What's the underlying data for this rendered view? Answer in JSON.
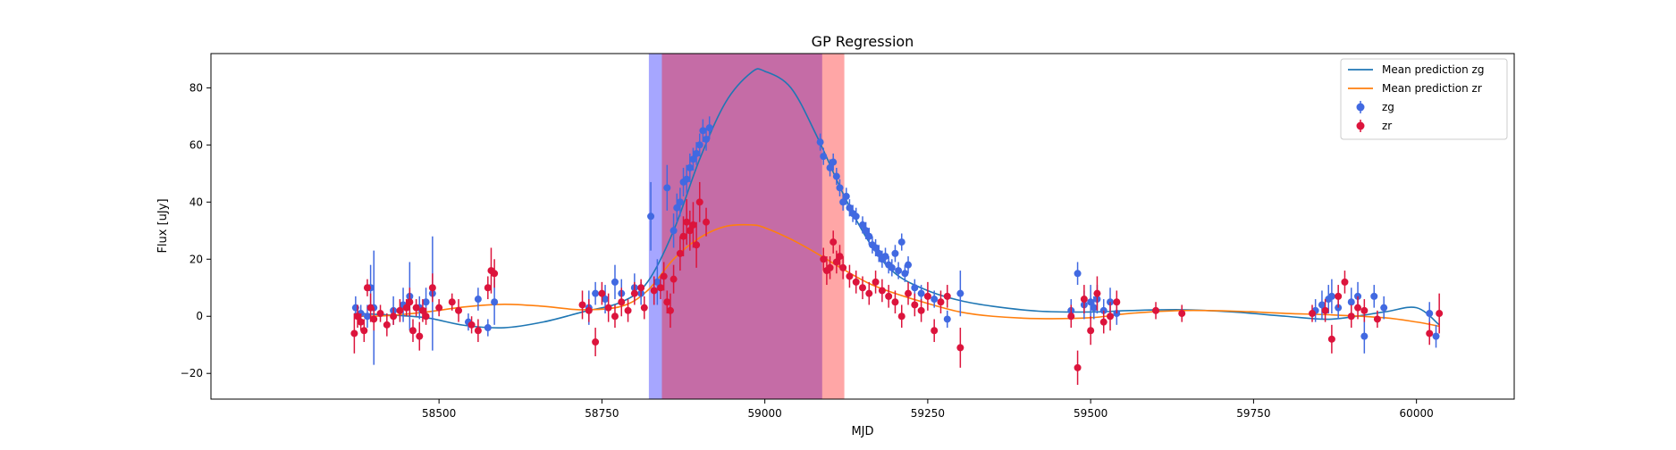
{
  "chart_data": {
    "type": "scatter",
    "title": "GP Regression",
    "xlabel": "MJD",
    "ylabel": "Flux [uJy]",
    "xlim": [
      58150,
      60150
    ],
    "ylim": [
      -29,
      92
    ],
    "xticks": [
      58500,
      58750,
      59000,
      59250,
      59500,
      59750,
      60000
    ],
    "yticks": [
      -20,
      0,
      20,
      40,
      60,
      80
    ],
    "grid": false,
    "legend_position": "top-right",
    "colors": {
      "zg_mean": "#1f77b4",
      "zr_mean": "#ff7f0e",
      "zg_points": "#4169e1",
      "zr_points": "#dc143c",
      "band_zg": "#0000ff",
      "band_zr": "#ff0000"
    },
    "shaded_regions": [
      {
        "band": "zg",
        "x_start": 58822,
        "x_end": 59088
      },
      {
        "band": "zr",
        "x_start": 58842,
        "x_end": 59122
      }
    ],
    "legend": [
      {
        "label": "Mean prediction zg",
        "kind": "line",
        "color": "#1f77b4"
      },
      {
        "label": "Mean prediction zr",
        "kind": "line",
        "color": "#ff7f0e"
      },
      {
        "label": "zg",
        "kind": "errorbar",
        "color": "#4169e1"
      },
      {
        "label": "zr",
        "kind": "errorbar",
        "color": "#dc143c"
      }
    ],
    "series": [
      {
        "name": "Mean prediction zg",
        "kind": "line",
        "x": [
          58370,
          58420,
          58480,
          58540,
          58600,
          58660,
          58720,
          58780,
          58820,
          58860,
          58900,
          58940,
          58980,
          59000,
          59040,
          59080,
          59120,
          59160,
          59200,
          59250,
          59300,
          59350,
          59420,
          59500,
          59560,
          59640,
          59720,
          59800,
          59870,
          59950,
          60000,
          60035
        ],
        "y": [
          1.0,
          0.5,
          -0.5,
          -3.2,
          -4.0,
          -2.0,
          1.5,
          5.0,
          12.0,
          30.0,
          55.0,
          75.0,
          85.5,
          85.8,
          80.0,
          63.0,
          43.0,
          26.0,
          15.0,
          9.0,
          5.5,
          3.5,
          1.8,
          1.5,
          2.0,
          2.3,
          1.5,
          0.0,
          -1.0,
          1.5,
          3.0,
          -3.0
        ]
      },
      {
        "name": "Mean prediction zr",
        "kind": "line",
        "x": [
          58370,
          58420,
          58480,
          58540,
          58600,
          58660,
          58720,
          58780,
          58820,
          58860,
          58900,
          58940,
          58980,
          59000,
          59040,
          59080,
          59120,
          59160,
          59200,
          59250,
          59300,
          59350,
          59420,
          59500,
          59560,
          59640,
          59720,
          59800,
          59870,
          59950,
          60000,
          60035
        ],
        "y": [
          0.0,
          0.2,
          1.5,
          3.3,
          4.2,
          3.5,
          2.3,
          3.5,
          9.0,
          20.0,
          27.5,
          31.5,
          32.0,
          31.0,
          27.0,
          22.0,
          16.5,
          11.5,
          8.0,
          4.5,
          1.5,
          0.0,
          -0.8,
          -0.5,
          1.0,
          2.0,
          1.8,
          1.0,
          0.5,
          -0.5,
          -2.0,
          -3.5
        ]
      },
      {
        "name": "zg",
        "kind": "errorbar",
        "x": [
          58372,
          58380,
          58390,
          58395,
          58400,
          58430,
          58445,
          58455,
          58470,
          58480,
          58490,
          58545,
          58560,
          58575,
          58585,
          58730,
          58740,
          58755,
          58770,
          58780,
          58800,
          58810,
          58825,
          58835,
          58850,
          58860,
          58865,
          58870,
          58875,
          58880,
          58885,
          58890,
          58895,
          58900,
          58905,
          58910,
          58915,
          59085,
          59090,
          59100,
          59105,
          59110,
          59115,
          59120,
          59125,
          59130,
          59135,
          59140,
          59150,
          59155,
          59160,
          59165,
          59170,
          59175,
          59180,
          59185,
          59190,
          59195,
          59200,
          59205,
          59210,
          59215,
          59220,
          59230,
          59240,
          59260,
          59280,
          59300,
          59470,
          59480,
          59490,
          59500,
          59505,
          59510,
          59520,
          59530,
          59540,
          59845,
          59855,
          59865,
          59870,
          59880,
          59900,
          59910,
          59920,
          59935,
          59950,
          60020,
          60030
        ],
        "y": [
          3,
          1,
          0,
          10,
          3,
          2,
          4,
          7,
          3,
          5,
          8,
          -2,
          6,
          -4,
          5,
          3,
          8,
          6,
          12,
          8,
          10,
          8,
          35,
          12,
          45,
          30,
          38,
          40,
          47,
          48,
          52,
          55,
          57,
          60,
          65,
          62,
          66,
          61,
          56,
          52,
          54,
          49,
          45,
          40,
          42,
          38,
          36,
          35,
          32,
          30,
          28,
          25,
          24,
          22,
          20,
          21,
          18,
          17,
          22,
          16,
          26,
          15,
          18,
          10,
          8,
          6,
          -1,
          8,
          2,
          15,
          4,
          5,
          3,
          6,
          2,
          5,
          1,
          2,
          4,
          6,
          7,
          3,
          5,
          7,
          -7,
          7,
          3,
          1,
          -7
        ],
        "yerr": [
          4,
          3,
          4,
          8,
          20,
          5,
          6,
          12,
          4,
          5,
          20,
          3,
          4,
          3,
          8,
          6,
          4,
          5,
          6,
          5,
          5,
          4,
          12,
          8,
          8,
          6,
          5,
          5,
          5,
          5,
          5,
          4,
          4,
          4,
          4,
          4,
          4,
          3,
          3,
          3,
          3,
          3,
          3,
          3,
          3,
          3,
          3,
          3,
          3,
          3,
          3,
          3,
          3,
          3,
          3,
          3,
          3,
          3,
          3,
          3,
          3,
          3,
          3,
          3,
          3,
          3,
          3,
          8,
          4,
          4,
          5,
          6,
          4,
          5,
          4,
          5,
          4,
          4,
          5,
          5,
          6,
          4,
          5,
          5,
          6,
          4,
          4,
          4,
          4
        ]
      },
      {
        "name": "zr",
        "kind": "errorbar",
        "x": [
          58370,
          58375,
          58380,
          58385,
          58390,
          58395,
          58400,
          58410,
          58420,
          58430,
          58440,
          58450,
          58455,
          58460,
          58465,
          58470,
          58475,
          58480,
          58490,
          58500,
          58520,
          58530,
          58550,
          58560,
          58575,
          58580,
          58585,
          58720,
          58730,
          58740,
          58750,
          58760,
          58770,
          58780,
          58790,
          58800,
          58810,
          58815,
          58830,
          58840,
          58845,
          58850,
          58855,
          58860,
          58870,
          58875,
          58880,
          58885,
          58890,
          58895,
          58900,
          58910,
          59090,
          59095,
          59100,
          59105,
          59110,
          59115,
          59120,
          59130,
          59140,
          59150,
          59160,
          59170,
          59180,
          59190,
          59200,
          59210,
          59220,
          59230,
          59240,
          59250,
          59260,
          59270,
          59280,
          59300,
          59470,
          59480,
          59490,
          59500,
          59510,
          59520,
          59530,
          59540,
          59600,
          59640,
          59840,
          59860,
          59870,
          59880,
          59890,
          59900,
          59910,
          59920,
          59940,
          60020,
          60035
        ],
        "y": [
          -6,
          0,
          -2,
          -5,
          10,
          3,
          -1,
          1,
          -3,
          0,
          2,
          3,
          5,
          -5,
          3,
          -7,
          2,
          0,
          10,
          3,
          5,
          2,
          -3,
          -5,
          10,
          16,
          15,
          4,
          2,
          -9,
          8,
          3,
          0,
          5,
          2,
          8,
          10,
          3,
          9,
          10,
          14,
          5,
          2,
          13,
          22,
          28,
          33,
          30,
          32,
          25,
          40,
          33,
          20,
          16,
          17,
          26,
          19,
          21,
          17,
          14,
          12,
          10,
          8,
          12,
          9,
          7,
          5,
          0,
          8,
          4,
          2,
          7,
          -5,
          5,
          7,
          -11,
          0,
          -18,
          6,
          -5,
          8,
          -2,
          0,
          5,
          2,
          1,
          1,
          2,
          -8,
          7,
          12,
          0,
          3,
          2,
          -1,
          -6,
          1
        ],
        "yerr": [
          7,
          4,
          3,
          4,
          3,
          5,
          4,
          3,
          4,
          3,
          4,
          3,
          5,
          4,
          3,
          5,
          4,
          3,
          5,
          3,
          3,
          4,
          3,
          4,
          4,
          8,
          5,
          5,
          4,
          5,
          4,
          5,
          4,
          5,
          4,
          4,
          3,
          4,
          5,
          4,
          5,
          4,
          6,
          5,
          6,
          7,
          8,
          7,
          8,
          8,
          7,
          5,
          4,
          5,
          4,
          4,
          4,
          4,
          4,
          4,
          4,
          4,
          4,
          4,
          4,
          4,
          4,
          4,
          4,
          4,
          4,
          5,
          4,
          4,
          4,
          7,
          4,
          6,
          5,
          5,
          6,
          4,
          5,
          4,
          3,
          3,
          3,
          4,
          5,
          4,
          4,
          4,
          4,
          4,
          3,
          4,
          7
        ]
      }
    ]
  }
}
